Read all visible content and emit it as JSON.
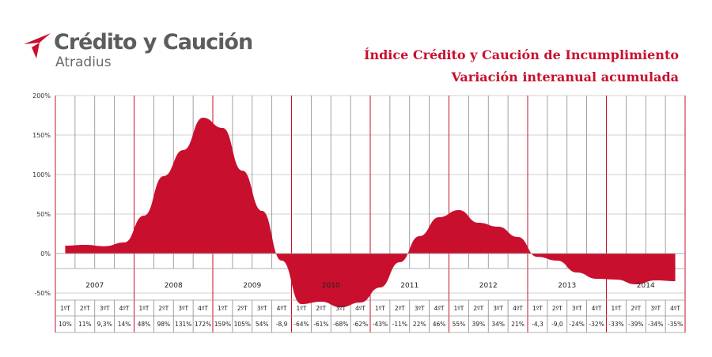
{
  "brand": {
    "name": "Crédito y Caución",
    "sub": "Atradius",
    "color": "#c8102e"
  },
  "chart_data": {
    "type": "area",
    "title": "Índice Crédito y Caución de Incumplimiento",
    "subtitle": "Variación interanual acumulada",
    "ylim": [
      -100,
      200
    ],
    "yticks": [
      "200%",
      "150%",
      "100%",
      "50%",
      "0%",
      "-50%"
    ],
    "ytick_values": [
      200,
      150,
      100,
      50,
      0,
      -50
    ],
    "years": [
      "2007",
      "2008",
      "2009",
      "2010",
      "2011",
      "2012",
      "2013",
      "2014"
    ],
    "quarters": [
      "1ºT",
      "2ºT",
      "3ºT",
      "4ºT",
      "1ºT",
      "2ºT",
      "3ºT",
      "4ºT",
      "1ºT",
      "2ºT",
      "3ºT",
      "4ºT",
      "1ºT",
      "2ºT",
      "3ºT",
      "4ºT",
      "1ºT",
      "2ºT",
      "3ºT",
      "4ºT",
      "1ºT",
      "2ºT",
      "3ºT",
      "4ºT",
      "1ºT",
      "2ºT",
      "3ºT",
      "4ºT",
      "1ºT",
      "2ºT",
      "3ºT",
      "4ºT"
    ],
    "value_labels": [
      "10%",
      "11%",
      "9,3%",
      "14%",
      "48%",
      "98%",
      "131%",
      "172%",
      "159%",
      "105%",
      "54%",
      "-8,9",
      "-64%",
      "-61%",
      "-68%",
      "-62%",
      "-43%",
      "-11%",
      "22%",
      "46%",
      "55%",
      "39%",
      "34%",
      "21%",
      "-4,3",
      "-9,0",
      "-24%",
      "-32%",
      "-33%",
      "-39%",
      "-34%",
      "-35%"
    ],
    "values": [
      10,
      11,
      9.3,
      14,
      48,
      98,
      131,
      172,
      159,
      105,
      54,
      -8.9,
      -64,
      -61,
      -68,
      -62,
      -43,
      -11,
      22,
      46,
      55,
      39,
      34,
      21,
      -4.3,
      -9.0,
      -24,
      -32,
      -33,
      -39,
      -34,
      -35
    ],
    "series_color": "#c8102e",
    "grid": true
  }
}
